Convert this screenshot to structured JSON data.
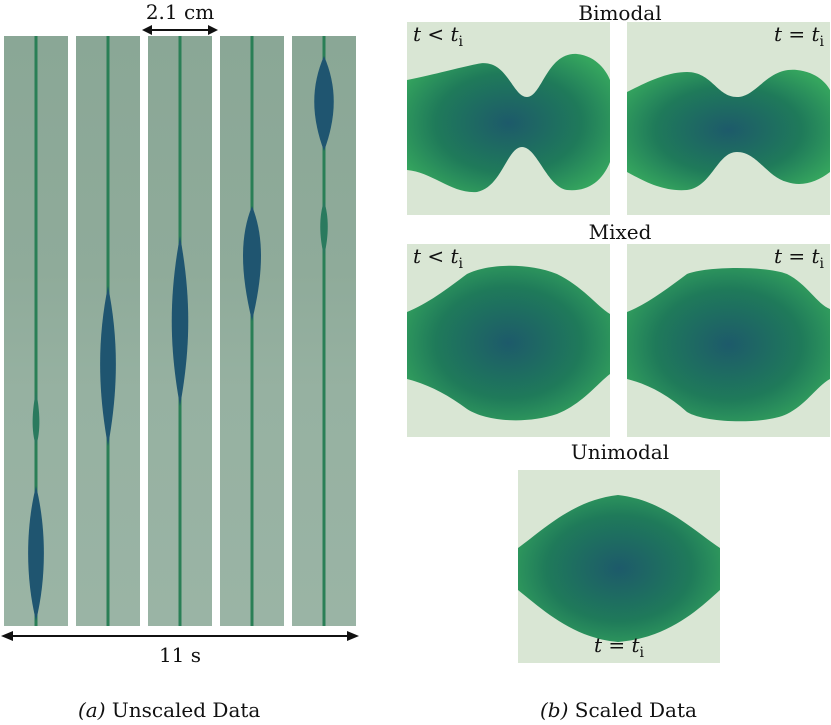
{
  "panel_a": {
    "scale_label": "2.1 cm",
    "time_label": "11 s",
    "caption_letter": "(a)",
    "caption_text": "Unscaled Data"
  },
  "panel_b": {
    "headings": {
      "bimodal": "Bimodal",
      "mixed": "Mixed",
      "unimodal": "Unimodal"
    },
    "labels": {
      "before": "t < t",
      "equal": "t = t",
      "sub": "i"
    },
    "caption_letter": "(b)",
    "caption_text": "Scaled Data"
  },
  "colors": {
    "background": "#ffffff",
    "strip": "#8fab9a",
    "thread": "#1f7a52",
    "drop_core": "#1c4f6e",
    "drop_edge": "#2e9a58",
    "panel_bg": "#d9e6d4"
  }
}
